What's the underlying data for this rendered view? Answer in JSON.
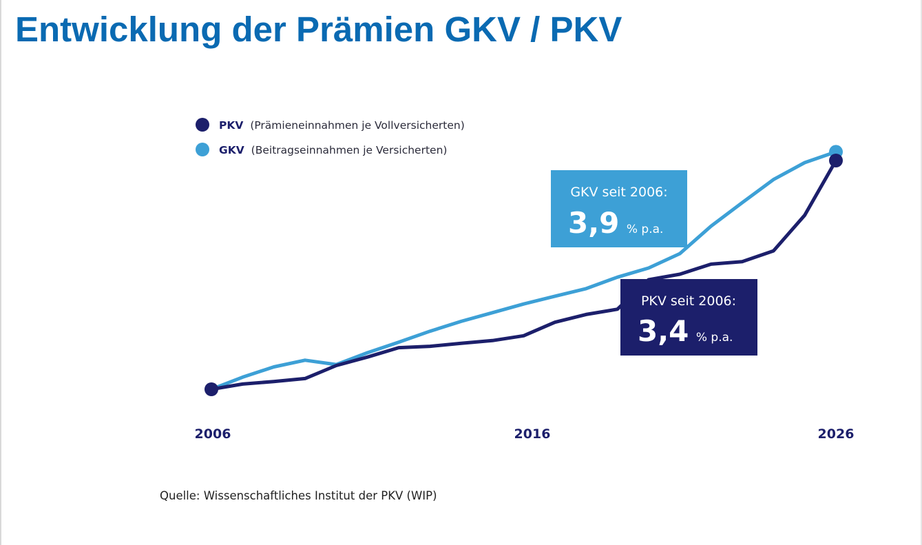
{
  "title": "Entwicklung der Prämien GKV / PKV",
  "source": "Quelle: Wissenschaftliches Institut der PKV (WIP)",
  "chart_data": {
    "type": "line",
    "title": "Entwicklung der Prämien GKV / PKV",
    "xlabel": "",
    "ylabel": "",
    "x": [
      2006,
      2007,
      2008,
      2009,
      2010,
      2011,
      2012,
      2013,
      2014,
      2015,
      2016,
      2017,
      2018,
      2019,
      2020,
      2021,
      2022,
      2023,
      2024,
      2025,
      2026
    ],
    "xticks": [
      "2006",
      "2016",
      "2026"
    ],
    "xlim": [
      2006,
      2026
    ],
    "ylim": [
      0,
      100
    ],
    "grid": false,
    "legend_position": "top-left",
    "series": [
      {
        "key": "pkv",
        "legend_name": "PKV",
        "legend_detail": "(Prämieneinnahmen je Vollversicherten)",
        "color": "#1c1f6b",
        "values": [
          0,
          2.3,
          3.4,
          4.7,
          10.4,
          14.1,
          18.2,
          18.8,
          20.1,
          21.3,
          23.4,
          29.3,
          32.7,
          35.0,
          47.9,
          50.3,
          54.7,
          55.8,
          60.5,
          76.1,
          100
        ]
      },
      {
        "key": "gkv",
        "legend_name": "GKV",
        "legend_detail": "(Beitragseinnahmen je Versicherten)",
        "color": "#3da0d6",
        "values": [
          0,
          5.3,
          9.8,
          12.7,
          10.8,
          16.0,
          20.6,
          25.4,
          29.7,
          33.5,
          37.3,
          40.7,
          44.0,
          49.0,
          53.0,
          59.3,
          71.3,
          81.6,
          91.7,
          99.1,
          103.8
        ]
      }
    ],
    "annotations": [
      {
        "series": "gkv",
        "caption": "GKV seit 2006:",
        "value": "3,9",
        "unit": "% p.a.",
        "color": "#3da0d6"
      },
      {
        "series": "pkv",
        "caption": "PKV seit 2006:",
        "value": "3,4",
        "unit": "% p.a.",
        "color": "#1c1f6b"
      }
    ]
  }
}
